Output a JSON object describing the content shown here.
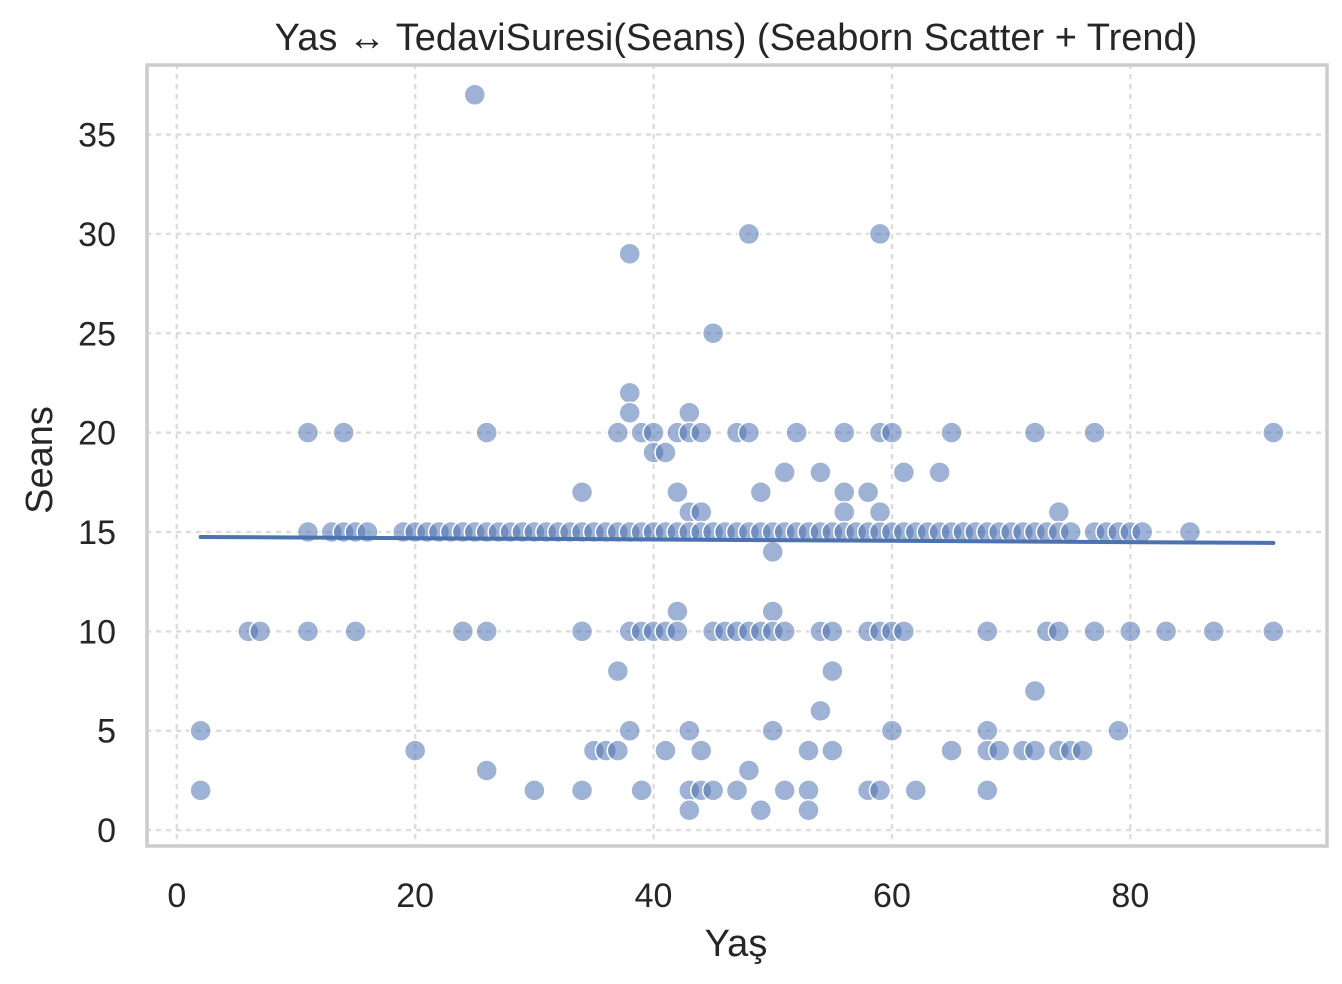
{
  "chart_data": {
    "type": "scatter",
    "title": "Yas ↔ TedaviSuresi(Seans) (Seaborn Scatter + Trend)",
    "xlabel": "Yaş",
    "ylabel": "Seans",
    "xlim": [
      -2.5,
      96.5
    ],
    "ylim": [
      -0.8,
      38.5
    ],
    "xticks": [
      0,
      20,
      40,
      60,
      80
    ],
    "yticks": [
      0,
      5,
      10,
      15,
      20,
      25,
      30,
      35
    ],
    "grid": true,
    "color": "#4c72b0",
    "point_alpha": 0.55,
    "trend": {
      "x": [
        2,
        92
      ],
      "y": [
        14.75,
        14.45
      ]
    },
    "points": [
      [
        25,
        37
      ],
      [
        38,
        29
      ],
      [
        48,
        30
      ],
      [
        59,
        30
      ],
      [
        45,
        25
      ],
      [
        38,
        22
      ],
      [
        38,
        21
      ],
      [
        43,
        21
      ],
      [
        11,
        20
      ],
      [
        14,
        20
      ],
      [
        26,
        20
      ],
      [
        37,
        20
      ],
      [
        39,
        20
      ],
      [
        40,
        20
      ],
      [
        42,
        20
      ],
      [
        43,
        20
      ],
      [
        44,
        20
      ],
      [
        47,
        20
      ],
      [
        48,
        20
      ],
      [
        52,
        20
      ],
      [
        56,
        20
      ],
      [
        59,
        20
      ],
      [
        60,
        20
      ],
      [
        65,
        20
      ],
      [
        72,
        20
      ],
      [
        77,
        20
      ],
      [
        92,
        20
      ],
      [
        40,
        19
      ],
      [
        41,
        19
      ],
      [
        51,
        18
      ],
      [
        54,
        18
      ],
      [
        61,
        18
      ],
      [
        64,
        18
      ],
      [
        34,
        17
      ],
      [
        42,
        17
      ],
      [
        49,
        17
      ],
      [
        56,
        17
      ],
      [
        58,
        17
      ],
      [
        43,
        16
      ],
      [
        44,
        16
      ],
      [
        56,
        16
      ],
      [
        59,
        16
      ],
      [
        74,
        16
      ],
      [
        11,
        15
      ],
      [
        13,
        15
      ],
      [
        14,
        15
      ],
      [
        15,
        15
      ],
      [
        16,
        15
      ],
      [
        19,
        15
      ],
      [
        20,
        15
      ],
      [
        21,
        15
      ],
      [
        22,
        15
      ],
      [
        23,
        15
      ],
      [
        24,
        15
      ],
      [
        25,
        15
      ],
      [
        26,
        15
      ],
      [
        27,
        15
      ],
      [
        28,
        15
      ],
      [
        29,
        15
      ],
      [
        30,
        15
      ],
      [
        31,
        15
      ],
      [
        32,
        15
      ],
      [
        33,
        15
      ],
      [
        34,
        15
      ],
      [
        35,
        15
      ],
      [
        36,
        15
      ],
      [
        37,
        15
      ],
      [
        38,
        15
      ],
      [
        39,
        15
      ],
      [
        40,
        15
      ],
      [
        41,
        15
      ],
      [
        42,
        15
      ],
      [
        43,
        15
      ],
      [
        44,
        15
      ],
      [
        45,
        15
      ],
      [
        46,
        15
      ],
      [
        47,
        15
      ],
      [
        48,
        15
      ],
      [
        49,
        15
      ],
      [
        50,
        15
      ],
      [
        51,
        15
      ],
      [
        52,
        15
      ],
      [
        53,
        15
      ],
      [
        54,
        15
      ],
      [
        55,
        15
      ],
      [
        56,
        15
      ],
      [
        57,
        15
      ],
      [
        58,
        15
      ],
      [
        59,
        15
      ],
      [
        60,
        15
      ],
      [
        61,
        15
      ],
      [
        62,
        15
      ],
      [
        63,
        15
      ],
      [
        64,
        15
      ],
      [
        65,
        15
      ],
      [
        66,
        15
      ],
      [
        67,
        15
      ],
      [
        68,
        15
      ],
      [
        69,
        15
      ],
      [
        70,
        15
      ],
      [
        71,
        15
      ],
      [
        72,
        15
      ],
      [
        73,
        15
      ],
      [
        74,
        15
      ],
      [
        75,
        15
      ],
      [
        77,
        15
      ],
      [
        78,
        15
      ],
      [
        79,
        15
      ],
      [
        80,
        15
      ],
      [
        81,
        15
      ],
      [
        85,
        15
      ],
      [
        50,
        14
      ],
      [
        42,
        11
      ],
      [
        50,
        11
      ],
      [
        6,
        10
      ],
      [
        7,
        10
      ],
      [
        11,
        10
      ],
      [
        15,
        10
      ],
      [
        24,
        10
      ],
      [
        26,
        10
      ],
      [
        34,
        10
      ],
      [
        38,
        10
      ],
      [
        39,
        10
      ],
      [
        40,
        10
      ],
      [
        41,
        10
      ],
      [
        42,
        10
      ],
      [
        45,
        10
      ],
      [
        46,
        10
      ],
      [
        47,
        10
      ],
      [
        48,
        10
      ],
      [
        49,
        10
      ],
      [
        50,
        10
      ],
      [
        51,
        10
      ],
      [
        54,
        10
      ],
      [
        55,
        10
      ],
      [
        58,
        10
      ],
      [
        59,
        10
      ],
      [
        60,
        10
      ],
      [
        61,
        10
      ],
      [
        68,
        10
      ],
      [
        73,
        10
      ],
      [
        74,
        10
      ],
      [
        77,
        10
      ],
      [
        80,
        10
      ],
      [
        83,
        10
      ],
      [
        87,
        10
      ],
      [
        92,
        10
      ],
      [
        37,
        8
      ],
      [
        55,
        8
      ],
      [
        72,
        7
      ],
      [
        54,
        6
      ],
      [
        2,
        5
      ],
      [
        38,
        5
      ],
      [
        43,
        5
      ],
      [
        50,
        5
      ],
      [
        60,
        5
      ],
      [
        68,
        5
      ],
      [
        79,
        5
      ],
      [
        20,
        4
      ],
      [
        35,
        4
      ],
      [
        36,
        4
      ],
      [
        37,
        4
      ],
      [
        41,
        4
      ],
      [
        44,
        4
      ],
      [
        53,
        4
      ],
      [
        55,
        4
      ],
      [
        65,
        4
      ],
      [
        68,
        4
      ],
      [
        69,
        4
      ],
      [
        71,
        4
      ],
      [
        72,
        4
      ],
      [
        74,
        4
      ],
      [
        75,
        4
      ],
      [
        76,
        4
      ],
      [
        26,
        3
      ],
      [
        48,
        3
      ],
      [
        2,
        2
      ],
      [
        30,
        2
      ],
      [
        34,
        2
      ],
      [
        39,
        2
      ],
      [
        43,
        2
      ],
      [
        44,
        2
      ],
      [
        45,
        2
      ],
      [
        47,
        2
      ],
      [
        51,
        2
      ],
      [
        53,
        2
      ],
      [
        58,
        2
      ],
      [
        59,
        2
      ],
      [
        62,
        2
      ],
      [
        68,
        2
      ],
      [
        43,
        1
      ],
      [
        49,
        1
      ],
      [
        53,
        1
      ]
    ]
  }
}
